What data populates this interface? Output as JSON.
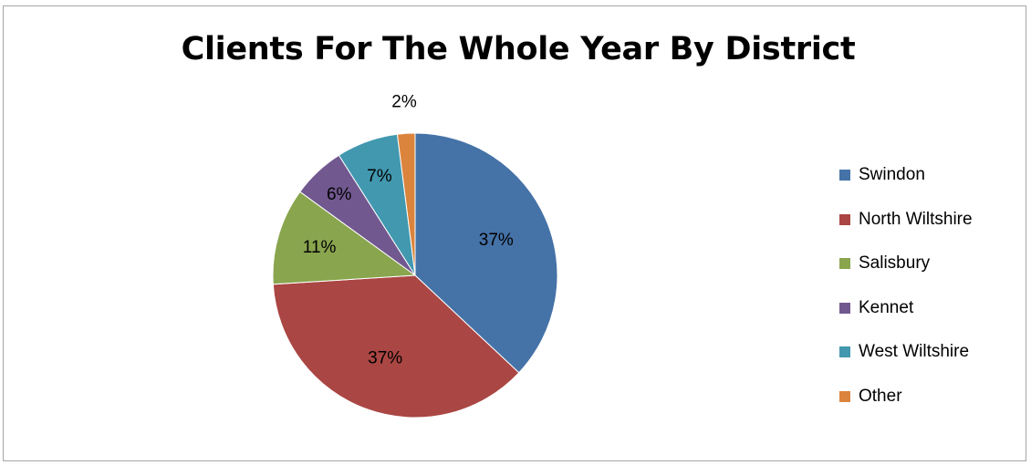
{
  "chart_data": {
    "type": "pie",
    "title": "Clients For The Whole Year By District",
    "slices": [
      {
        "name": "Swindon",
        "value": 37,
        "label": "37%",
        "color": "#4572A7"
      },
      {
        "name": "North Wiltshire",
        "value": 37,
        "label": "37%",
        "color": "#AA4643"
      },
      {
        "name": "Salisbury",
        "value": 11,
        "label": "11%",
        "color": "#89A54E"
      },
      {
        "name": "Kennet",
        "value": 6,
        "label": "6%",
        "color": "#71588F"
      },
      {
        "name": "West Wiltshire",
        "value": 7,
        "label": "7%",
        "color": "#4198AF"
      },
      {
        "name": "Other",
        "value": 2,
        "label": "2%",
        "color": "#DB843D"
      }
    ],
    "legend_position": "right"
  }
}
